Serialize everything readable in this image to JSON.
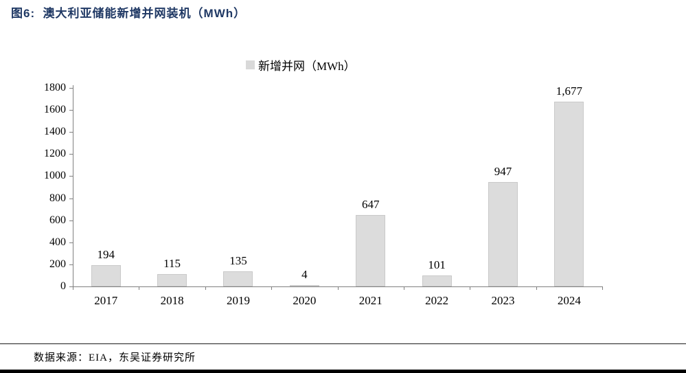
{
  "figure": {
    "title": "图6:  澳大利亚储能新增并网装机（MWh）",
    "source": "数据来源：EIA，东吴证券研究所"
  },
  "chart_data": {
    "type": "bar",
    "title": "澳大利亚储能新增并网装机（MWh）",
    "legend": [
      {
        "label": "新增并网（MWh）",
        "color": "#d9d9d9"
      }
    ],
    "legend_position": "top-center",
    "categories": [
      "2017",
      "2018",
      "2019",
      "2020",
      "2021",
      "2022",
      "2023",
      "2024"
    ],
    "series": [
      {
        "name": "新增并网（MWh）",
        "values": [
          194,
          115,
          135,
          4,
          647,
          101,
          947,
          1677
        ]
      }
    ],
    "value_labels": [
      "194",
      "115",
      "135",
      "4",
      "647",
      "101",
      "947",
      "1,677"
    ],
    "xlabel": "",
    "ylabel": "",
    "ylim": [
      0,
      1800
    ],
    "yticks": [
      0,
      200,
      400,
      600,
      800,
      1000,
      1200,
      1400,
      1600,
      1800
    ],
    "grid": false,
    "bar_color": "#dcdcdc",
    "bar_border_color": "#c9c9c9",
    "axis_color": "#7f7f7f"
  },
  "colors": {
    "title": "#1f3864",
    "text": "#000000",
    "footer_bar": "#000000",
    "footer_rule": "#1a1a1a"
  }
}
